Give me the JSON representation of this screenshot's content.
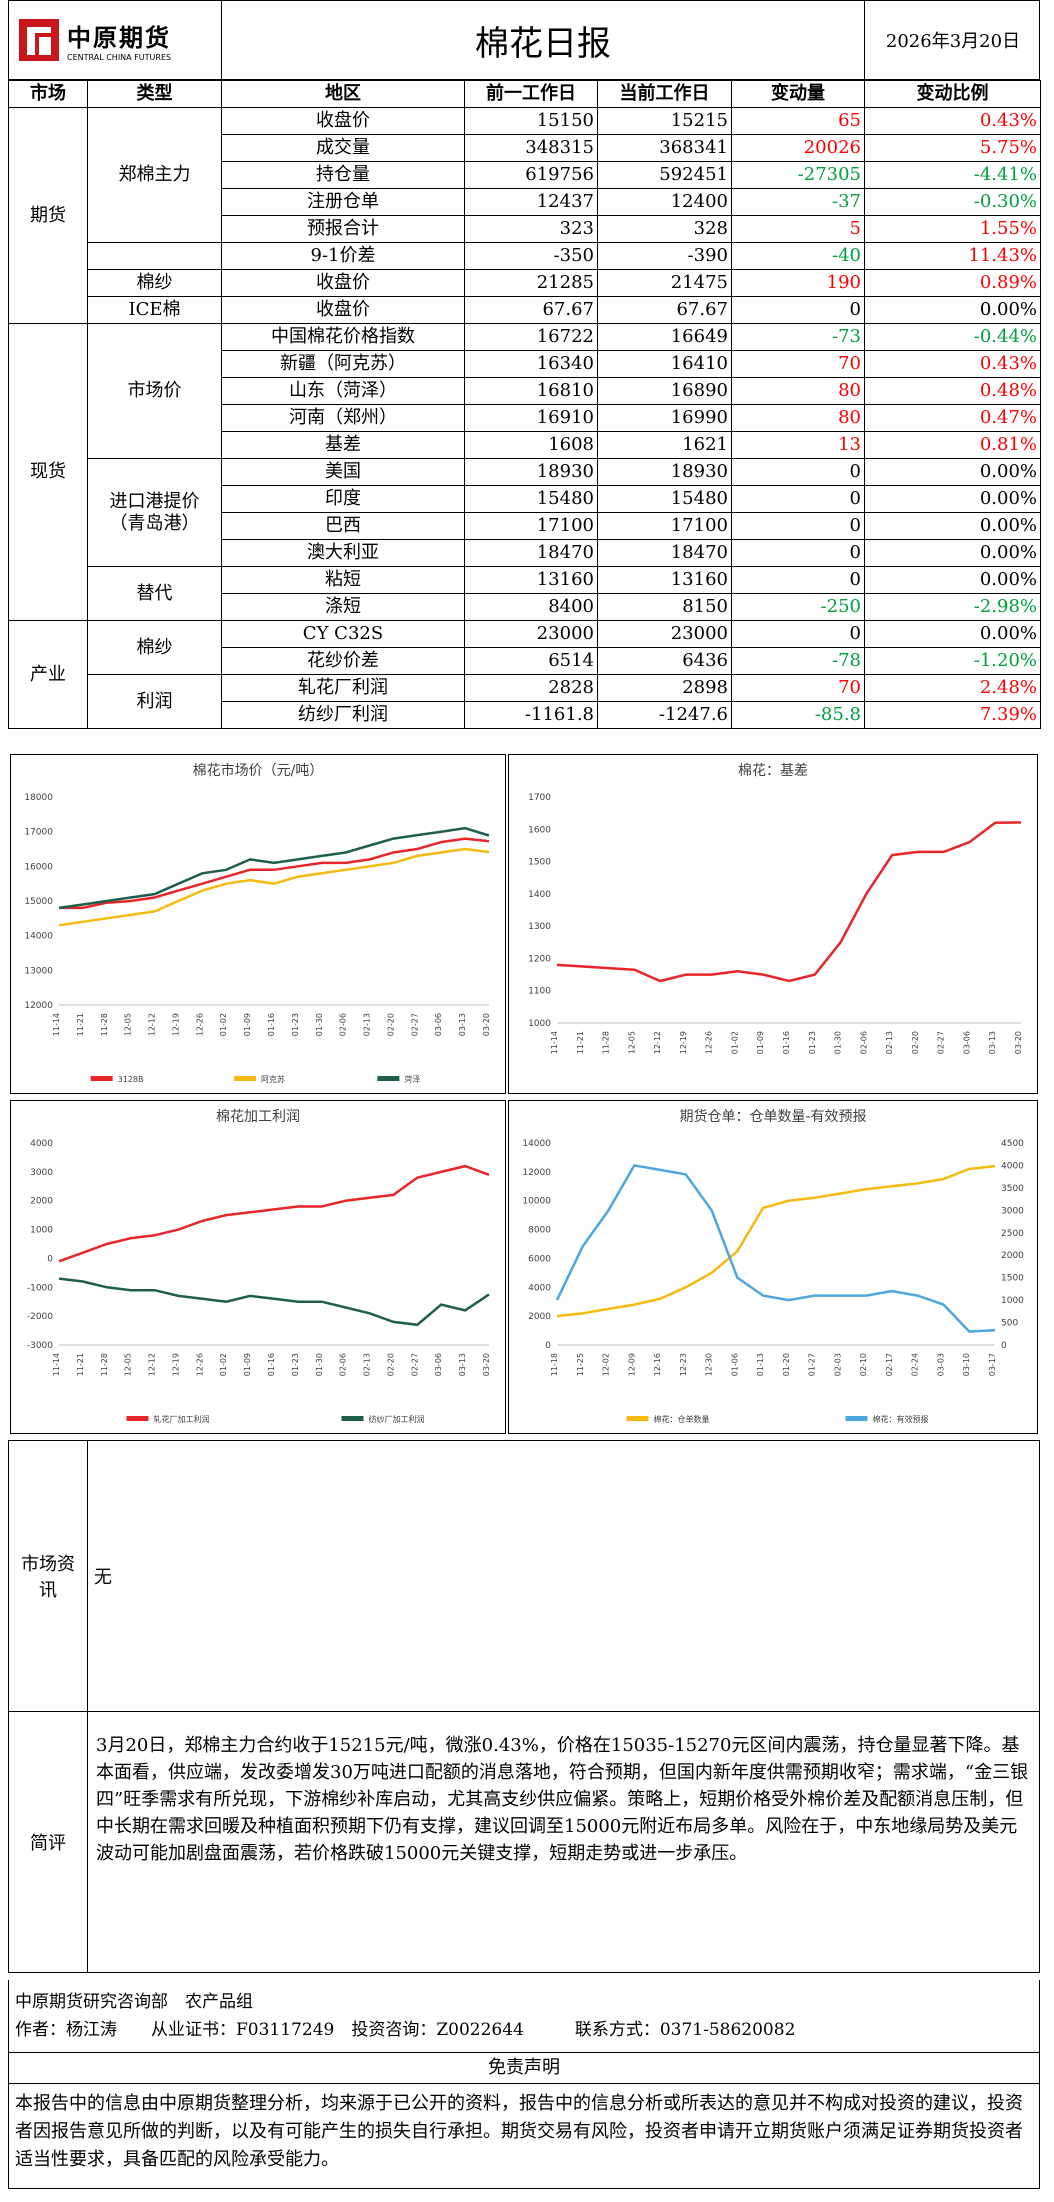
{
  "header": {
    "logo_cn": "中原期货",
    "logo_en": "CENTRAL CHINA FUTURES",
    "title": "棉花日报",
    "date": "2026年3月20日"
  },
  "table": {
    "columns": [
      "市场",
      "类型",
      "地区",
      "前一工作日",
      "当前工作日",
      "变动量",
      "变动比例"
    ],
    "markets": [
      {
        "name": "期货",
        "types": [
          {
            "name": "郑棉主力",
            "rows": [
              [
                "收盘价",
                "15150",
                "15215",
                "65",
                "0.43%"
              ],
              [
                "成交量",
                "348315",
                "368341",
                "20026",
                "5.75%"
              ],
              [
                "持仓量",
                "619756",
                "592451",
                "-27305",
                "-4.41%"
              ],
              [
                "注册仓单",
                "12437",
                "12400",
                "-37",
                "-0.30%"
              ],
              [
                "预报合计",
                "323",
                "328",
                "5",
                "1.55%"
              ]
            ]
          },
          {
            "name": null,
            "rows": [
              [
                "9-1价差",
                "-350",
                "-390",
                "-40",
                "11.43%"
              ]
            ]
          },
          {
            "name": "棉纱",
            "rows": [
              [
                "收盘价",
                "21285",
                "21475",
                "190",
                "0.89%"
              ]
            ]
          },
          {
            "name": "ICE棉",
            "rows": [
              [
                "收盘价",
                "67.67",
                "67.67",
                "0",
                "0.00%"
              ]
            ]
          }
        ]
      },
      {
        "name": "现货",
        "types": [
          {
            "name": "市场价",
            "rows": [
              [
                "中国棉花价格指数",
                "16722",
                "16649",
                "-73",
                "-0.44%"
              ],
              [
                "新疆（阿克苏）",
                "16340",
                "16410",
                "70",
                "0.43%"
              ],
              [
                "山东（菏泽）",
                "16810",
                "16890",
                "80",
                "0.48%"
              ],
              [
                "河南（郑州）",
                "16910",
                "16990",
                "80",
                "0.47%"
              ],
              [
                "基差",
                "1608",
                "1621",
                "13",
                "0.81%"
              ]
            ]
          },
          {
            "name": "进口港提价\n（青岛港）",
            "rows": [
              [
                "美国",
                "18930",
                "18930",
                "0",
                "0.00%"
              ],
              [
                "印度",
                "15480",
                "15480",
                "0",
                "0.00%"
              ],
              [
                "巴西",
                "17100",
                "17100",
                "0",
                "0.00%"
              ],
              [
                "澳大利亚",
                "18470",
                "18470",
                "0",
                "0.00%"
              ]
            ]
          },
          {
            "name": "替代",
            "rows": [
              [
                "粘短",
                "13160",
                "13160",
                "0",
                "0.00%"
              ],
              [
                "涤短",
                "8400",
                "8150",
                "-250",
                "-2.98%"
              ]
            ]
          }
        ]
      },
      {
        "name": "产业",
        "types": [
          {
            "name": "棉纱",
            "rows": [
              [
                "CY C32S",
                "23000",
                "23000",
                "0",
                "0.00%"
              ],
              [
                "花纱价差",
                "6514",
                "6436",
                "-78",
                "-1.20%"
              ]
            ]
          },
          {
            "name": "利润",
            "rows": [
              [
                "轧花厂利润",
                "2828",
                "2898",
                "70",
                "2.48%"
              ],
              [
                "纺纱厂利润",
                "-1161.8",
                "-1247.6",
                "-85.8",
                "7.39%"
              ]
            ]
          }
        ]
      }
    ]
  },
  "chart_data": [
    {
      "type": "line",
      "title": "棉花市场价（元/吨）",
      "categories": [
        "11-14",
        "11-21",
        "11-28",
        "12-05",
        "12-12",
        "12-19",
        "12-26",
        "01-02",
        "01-09",
        "01-16",
        "01-23",
        "01-30",
        "02-06",
        "02-13",
        "02-20",
        "02-27",
        "03-06",
        "03-13",
        "03-20"
      ],
      "series": [
        {
          "name": "3128B",
          "color": "#e8262a",
          "values": [
            14800,
            14800,
            14950,
            15000,
            15100,
            15300,
            15500,
            15700,
            15900,
            15900,
            16000,
            16100,
            16100,
            16200,
            16400,
            16500,
            16700,
            16800,
            16722
          ]
        },
        {
          "name": "阿克苏",
          "color": "#f5b90f",
          "values": [
            14300,
            14400,
            14500,
            14600,
            14700,
            15000,
            15300,
            15500,
            15600,
            15500,
            15700,
            15800,
            15900,
            16000,
            16100,
            16300,
            16400,
            16500,
            16410
          ]
        },
        {
          "name": "菏泽",
          "color": "#1e5e4c",
          "values": [
            14800,
            14900,
            15000,
            15100,
            15200,
            15500,
            15800,
            15900,
            16200,
            16100,
            16200,
            16300,
            16400,
            16600,
            16800,
            16900,
            17000,
            17100,
            16890
          ]
        }
      ],
      "ylim": [
        12000,
        18000
      ],
      "yticks": [
        12000,
        13000,
        14000,
        15000,
        16000,
        17000,
        18000
      ],
      "legend": "bottom",
      "grid": false
    },
    {
      "type": "line",
      "title": "棉花：基差",
      "categories": [
        "11-14",
        "11-21",
        "11-28",
        "12-05",
        "12-12",
        "12-19",
        "12-26",
        "01-02",
        "01-09",
        "01-16",
        "01-23",
        "01-30",
        "02-06",
        "02-13",
        "02-20",
        "02-27",
        "03-06",
        "03-13",
        "03-20"
      ],
      "series": [
        {
          "color": "#e8262a",
          "values": [
            1180,
            1175,
            1170,
            1165,
            1130,
            1150,
            1150,
            1160,
            1150,
            1130,
            1150,
            1250,
            1400,
            1520,
            1530,
            1530,
            1560,
            1620,
            1621
          ]
        }
      ],
      "ylim": [
        1000,
        1700
      ],
      "yticks": [
        1000,
        1100,
        1200,
        1300,
        1400,
        1500,
        1600,
        1700
      ],
      "grid": false
    },
    {
      "type": "line",
      "title": "棉花加工利润",
      "categories": [
        "11-14",
        "11-21",
        "11-28",
        "12-05",
        "12-12",
        "12-19",
        "12-26",
        "01-02",
        "01-09",
        "01-16",
        "01-23",
        "01-30",
        "02-06",
        "02-13",
        "02-20",
        "02-27",
        "03-06",
        "03-13",
        "03-20"
      ],
      "series": [
        {
          "name": "轧花厂加工利润",
          "color": "#e8262a",
          "values": [
            -100,
            200,
            500,
            700,
            800,
            1000,
            1300,
            1500,
            1600,
            1700,
            1800,
            1800,
            2000,
            2100,
            2200,
            2800,
            3000,
            3200,
            2898
          ]
        },
        {
          "name": "纺纱厂加工利润",
          "color": "#1e5e4c",
          "values": [
            -700,
            -800,
            -1000,
            -1100,
            -1100,
            -1300,
            -1400,
            -1500,
            -1300,
            -1400,
            -1500,
            -1500,
            -1700,
            -1900,
            -2200,
            -2300,
            -1600,
            -1800,
            -1247.6
          ]
        }
      ],
      "ylim": [
        -3000,
        4000
      ],
      "yticks": [
        -3000,
        -2000,
        -1000,
        0,
        1000,
        2000,
        3000,
        4000
      ],
      "legend": "bottom",
      "grid": false
    },
    {
      "type": "line",
      "title": "期货仓单：仓单数量-有效预报",
      "categories": [
        "11-18",
        "11-25",
        "12-02",
        "12-09",
        "12-16",
        "12-23",
        "12-30",
        "01-06",
        "01-13",
        "01-20",
        "01-27",
        "02-03",
        "02-10",
        "02-17",
        "02-24",
        "03-03",
        "03-10",
        "03-17"
      ],
      "series": [
        {
          "name": "棉花：仓单数量",
          "color": "#f5b90f",
          "values": [
            2000,
            2200,
            2500,
            2800,
            3200,
            4000,
            5000,
            6500,
            9500,
            10000,
            10200,
            10500,
            10800,
            11000,
            11200,
            11500,
            12200,
            12400
          ]
        },
        {
          "name": "棉花：有效预报",
          "color": "#4ea6dc",
          "axis": "y2",
          "values": [
            1000,
            2200,
            3000,
            4000,
            3900,
            3800,
            3000,
            1500,
            1100,
            1000,
            1100,
            1100,
            1100,
            1200,
            1100,
            900,
            300,
            328
          ]
        }
      ],
      "ylim": [
        0,
        14000
      ],
      "yticks": [
        0,
        2000,
        4000,
        6000,
        8000,
        10000,
        12000,
        14000
      ],
      "y2lim": [
        0,
        4500
      ],
      "y2ticks": [
        0,
        500,
        1000,
        1500,
        2000,
        2500,
        3000,
        3500,
        4000,
        4500
      ],
      "legend": "bottom",
      "grid": false
    }
  ],
  "market_news": {
    "label": "市场资讯",
    "content": "无"
  },
  "commentary": {
    "label": "简评",
    "content": "3月20日，郑棉主力合约收于15215元/吨，微涨0.43%，价格在15035-15270元区间内震荡，持仓量显著下降。基本面看，供应端，发改委增发30万吨进口配额的消息落地，符合预期，但国内新年度供需预期收窄；需求端，“金三银四”旺季需求有所兑现，下游棉纱补库启动，尤其高支纱供应偏紧。策略上，短期价格受外棉价差及配额消息压制，但中长期在需求回暖及种植面积预期下仍有支撑，建议回调至15000元附近布局多单。风险在于，中东地缘局势及美元波动可能加剧盘面震荡，若价格跌破15000元关键支撑，短期走势或进一步承压。"
  },
  "footer": {
    "department": "中原期货研究咨询部　农产品组",
    "author_line": "作者：杨江涛　　从业证书：F03117249　投资咨询：Z0022644　　　联系方式：0371-58620082"
  },
  "disclaimer": {
    "title": "免责声明",
    "text": "本报告中的信息由中原期货整理分析，均来源于已公开的资料，报告中的信息分析或所表达的意见并不构成对投资的建议，投资者因报告意见所做的判断，以及有可能产生的损失自行承担。期货交易有风险，投资者申请开立期货账户须满足证券期货投资者适当性要求，具备匹配的风险承受能力。"
  }
}
